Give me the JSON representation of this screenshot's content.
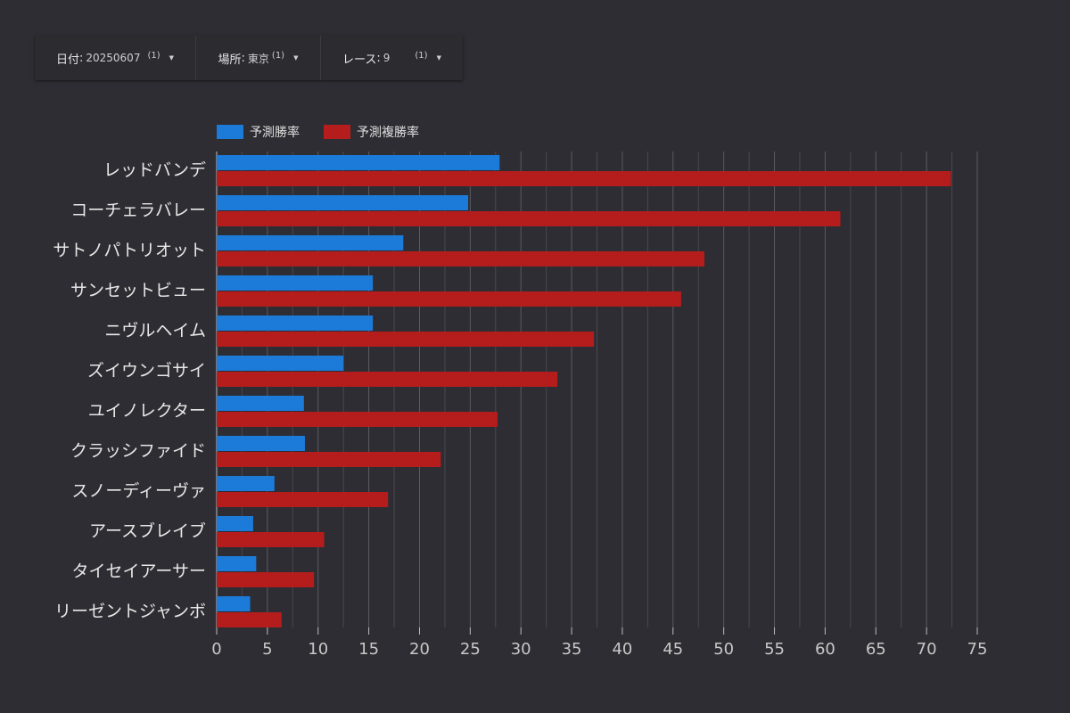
{
  "filters": [
    {
      "label": "日付",
      "value": "20250607",
      "count": "(1)"
    },
    {
      "label": "場所",
      "value": "東京",
      "count": "(1)"
    },
    {
      "label": "レース",
      "value": "9",
      "count": "(1)"
    }
  ],
  "colors": {
    "win": "#1c7ad8",
    "place": "#b51d1d",
    "grid": "#5a5a60",
    "axis": "#c8c8c8"
  },
  "chart_data": {
    "type": "bar",
    "orientation": "horizontal",
    "categories": [
      "レッドバンデ",
      "コーチェラバレー",
      "サトノパトリオット",
      "サンセットビュー",
      "ニヴルヘイム",
      "ズイウンゴサイ",
      "ユイノレクター",
      "クラッシファイド",
      "スノーディーヴァ",
      "アースブレイブ",
      "タイセイアーサー",
      "リーゼントジャンボ"
    ],
    "series": [
      {
        "name": "予測勝率",
        "values": [
          27.9,
          24.8,
          18.4,
          15.4,
          15.4,
          12.5,
          8.6,
          8.7,
          5.7,
          3.6,
          3.9,
          3.3
        ]
      },
      {
        "name": "予測複勝率",
        "values": [
          72.4,
          61.5,
          48.1,
          45.8,
          37.2,
          33.6,
          27.7,
          22.1,
          16.9,
          10.6,
          9.6,
          6.4
        ]
      }
    ],
    "xlim": [
      0,
      75
    ],
    "xticks": [
      0,
      5,
      10,
      15,
      20,
      25,
      30,
      35,
      40,
      45,
      50,
      55,
      60,
      65,
      70,
      75
    ],
    "legend_position": "top-left",
    "grid": true
  }
}
